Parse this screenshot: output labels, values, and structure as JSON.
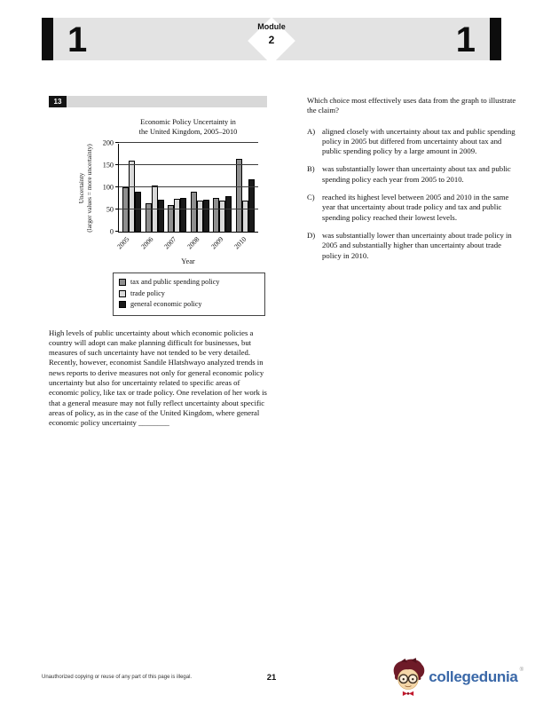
{
  "header": {
    "section_left": "1",
    "section_right": "1",
    "module_label": "Module",
    "module_number": "2"
  },
  "question": {
    "number": "13",
    "stem": "Which choice most effectively uses data from the graph to illustrate the claim?",
    "options": [
      {
        "letter": "A)",
        "text": "aligned closely with uncertainty about tax and public spending policy in 2005 but differed from uncertainty about tax and public spending policy by a large amount in 2009."
      },
      {
        "letter": "B)",
        "text": "was substantially lower than uncertainty about tax and public spending policy each year from 2005 to 2010."
      },
      {
        "letter": "C)",
        "text": "reached its highest level between 2005 and 2010 in the same year that uncertainty about trade policy and tax and public spending policy reached their lowest levels."
      },
      {
        "letter": "D)",
        "text": "was substantially lower than uncertainty about trade policy in 2005 and substantially higher than uncertainty about trade policy in 2010."
      }
    ]
  },
  "passage": "High levels of public uncertainty about which economic policies a country will adopt can make planning difficult for businesses, but measures of such uncertainty have not tended to be very detailed. Recently, however, economist Sandile Hlatshwayo analyzed trends in news reports to derive measures not only for general economic policy uncertainty but also for uncertainty related to specific areas of economic policy, like tax or trade policy. One revelation of her work is that a general measure may not fully reflect uncertainty about specific areas of policy, as in the case of the United Kingdom, where general economic policy uncertainty ________",
  "chart_data": {
    "type": "bar",
    "title": "Economic Policy Uncertainty in the United Kingdom, 2005–2010",
    "title_lines": [
      "Economic Policy Uncertainty in",
      "the United Kingdom, 2005–2010"
    ],
    "ylabel_lines": [
      "Uncertainty",
      "(larger values = more uncertainty)"
    ],
    "xlabel": "Year",
    "categories": [
      "2005",
      "2006",
      "2007",
      "2008",
      "2009",
      "2010"
    ],
    "series": [
      {
        "key": "tax",
        "name": "tax and public spending policy",
        "color": "#8f8f8f",
        "values": [
          100,
          65,
          61,
          90,
          77,
          165
        ]
      },
      {
        "key": "trade",
        "name": "trade policy",
        "color": "#d9d9d9",
        "values": [
          160,
          105,
          75,
          71,
          70,
          71
        ]
      },
      {
        "key": "general",
        "name": "general economic policy",
        "color": "#1a1a1a",
        "values": [
          90,
          72,
          77,
          73,
          81,
          118
        ]
      }
    ],
    "ylim": [
      0,
      200
    ],
    "yticks": [
      0,
      50,
      100,
      150,
      200
    ],
    "grid": true,
    "legend_position": "below"
  },
  "footer": {
    "copyright": "Unauthorized copying or reuse of any part of this page is illegal.",
    "page_number": "21",
    "logo_text": "collegedunia",
    "logo_mark": "®"
  },
  "colors": {
    "logo_blue": "#3a68a8",
    "header_gray": "#e3e3e3"
  }
}
